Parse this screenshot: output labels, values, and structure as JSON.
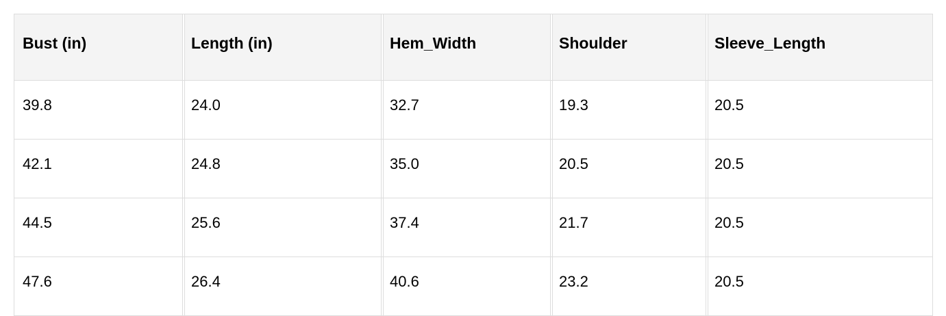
{
  "table": {
    "headers": [
      "Bust (in)",
      "Length (in)",
      "Hem_Width",
      "Shoulder",
      "Sleeve_Length"
    ],
    "rows": [
      [
        "39.8",
        "24.0",
        "32.7",
        "19.3",
        "20.5"
      ],
      [
        "42.1",
        "24.8",
        "35.0",
        "20.5",
        "20.5"
      ],
      [
        "44.5",
        "25.6",
        "37.4",
        "21.7",
        "20.5"
      ],
      [
        "47.6",
        "26.4",
        "40.6",
        "23.2",
        "20.5"
      ]
    ]
  }
}
